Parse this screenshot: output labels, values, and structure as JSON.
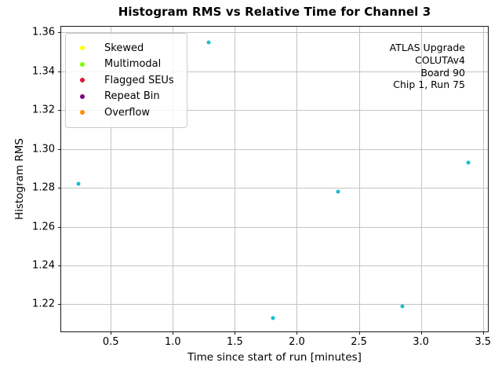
{
  "chart_data": {
    "type": "scatter",
    "title": "Histogram RMS vs Relative Time for Channel 3",
    "xlabel": "Time since start of run [minutes]",
    "ylabel": "Histogram RMS",
    "series": [
      {
        "color": "#17becf",
        "marker": "dot",
        "x": [
          0.24,
          1.29,
          1.81,
          2.33,
          2.85,
          3.38
        ],
        "y": [
          1.282,
          1.355,
          1.213,
          1.278,
          1.219,
          1.293
        ]
      }
    ],
    "xlim": [
      0.1,
      3.54
    ],
    "ylim": [
      1.206,
      1.363
    ],
    "xticks": [
      0.5,
      1.0,
      1.5,
      2.0,
      2.5,
      3.0,
      3.5
    ],
    "xtick_labels": [
      "0.5",
      "1.0",
      "1.5",
      "2.0",
      "2.5",
      "3.0",
      "3.5"
    ],
    "yticks": [
      1.22,
      1.24,
      1.26,
      1.28,
      1.3,
      1.32,
      1.34,
      1.36
    ],
    "ytick_labels": [
      "1.22",
      "1.24",
      "1.26",
      "1.28",
      "1.30",
      "1.32",
      "1.34",
      "1.36"
    ],
    "grid": true,
    "grid_color": "#c4c4c4",
    "legend": {
      "position": "upper left",
      "entries": [
        {
          "label": "Skewed",
          "color": "#ffff00"
        },
        {
          "label": "Multimodal",
          "color": "#7cfc00"
        },
        {
          "label": "Flagged SEUs",
          "color": "#dc143c"
        },
        {
          "label": "Repeat Bin",
          "color": "#800080"
        },
        {
          "label": "Overflow",
          "color": "#ff8c00"
        }
      ]
    },
    "annotations": {
      "position": "upper right",
      "align": "right",
      "lines": [
        "ATLAS Upgrade",
        "COLUTAv4",
        "Board 90",
        "Chip 1, Run 75"
      ]
    }
  }
}
